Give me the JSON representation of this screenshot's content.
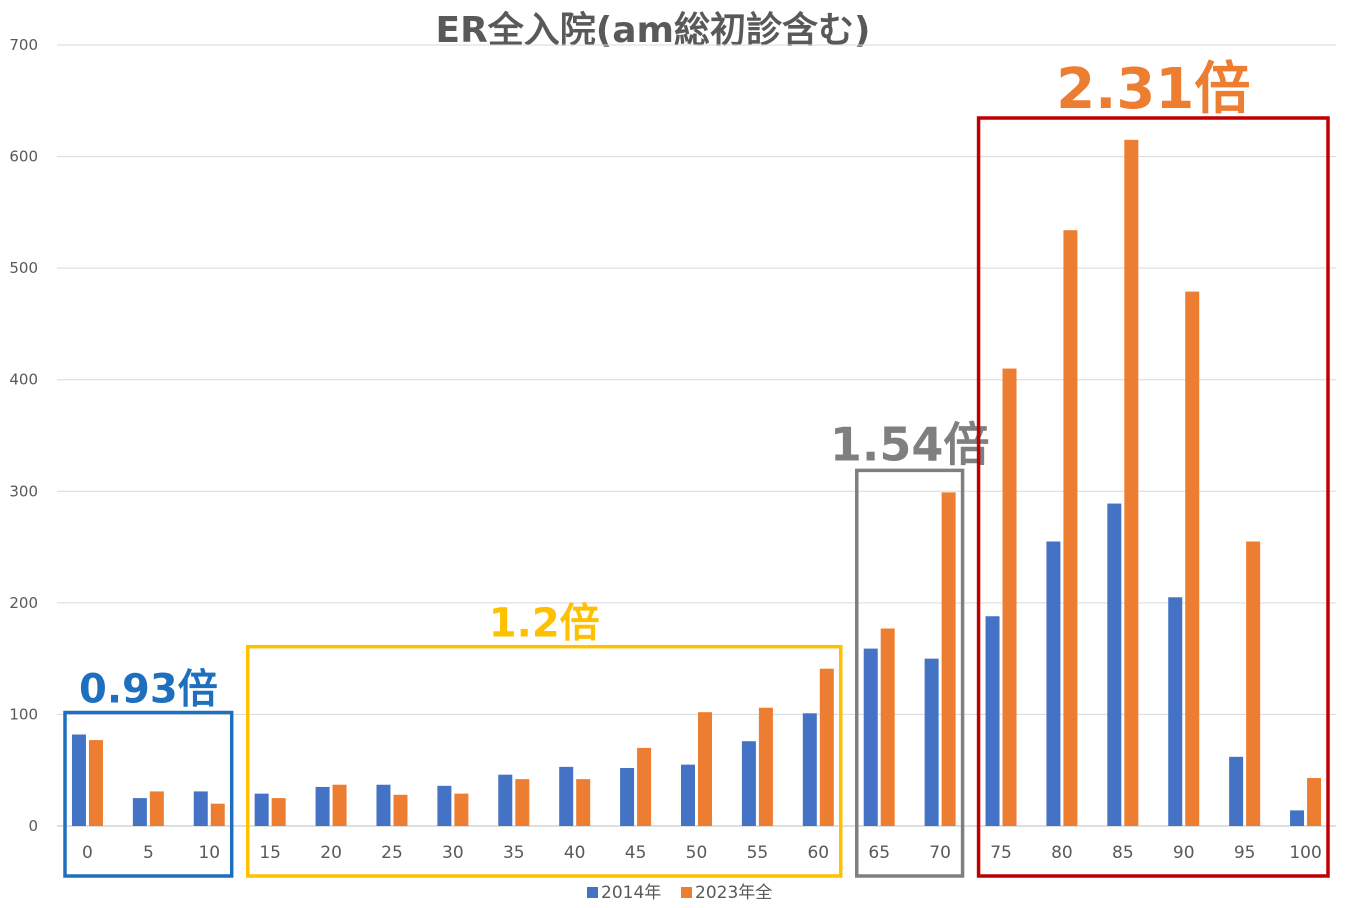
{
  "chart_data": {
    "type": "bar",
    "title": "ER全入院(am総初診含む)",
    "xlabel": "",
    "ylabel": "",
    "ylim": [
      0,
      700
    ],
    "yticks": [
      0,
      100,
      200,
      300,
      400,
      500,
      600,
      700
    ],
    "grid": true,
    "legend_position": "bottom",
    "categories": [
      "0",
      "5",
      "10",
      "15",
      "20",
      "25",
      "30",
      "35",
      "40",
      "45",
      "50",
      "55",
      "60",
      "65",
      "70",
      "75",
      "80",
      "85",
      "90",
      "95",
      "100"
    ],
    "series": [
      {
        "name": "2014年",
        "color": "#4472C4",
        "values": [
          82,
          25,
          31,
          29,
          35,
          37,
          36,
          46,
          53,
          52,
          55,
          76,
          101,
          159,
          150,
          188,
          255,
          289,
          205,
          62,
          14
        ]
      },
      {
        "name": "2023年全",
        "color": "#ED7D31",
        "values": [
          77,
          31,
          20,
          25,
          37,
          28,
          29,
          42,
          42,
          70,
          102,
          106,
          141,
          177,
          299,
          410,
          534,
          615,
          479,
          255,
          43
        ]
      }
    ],
    "annotations": [
      {
        "text": "0.93倍",
        "color": "#1F6FBF",
        "from": 0,
        "to": 2,
        "size": "medium"
      },
      {
        "text": "1.2倍",
        "color": "#FFC000",
        "from": 3,
        "to": 12,
        "size": "medium"
      },
      {
        "text": "1.54倍",
        "color": "#7F7F7F",
        "from": 13,
        "to": 14,
        "size": "large"
      },
      {
        "text": "2.31倍",
        "color": "#ED7D31",
        "box_color": "#C00000",
        "from": 15,
        "to": 20,
        "size": "xlarge"
      }
    ]
  }
}
